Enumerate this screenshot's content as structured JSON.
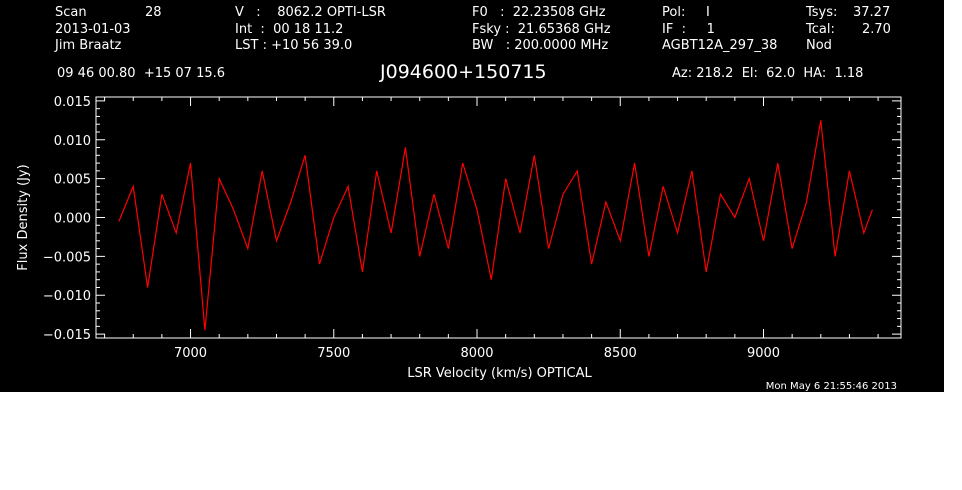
{
  "header": {
    "scan_label": "Scan",
    "scan_number": "28",
    "date": "2013-01-03",
    "observer": "Jim Braatz",
    "velocity": "V   :    8062.2 OPTI-LSR",
    "integration": "Int  :  00 18 11.2",
    "lst": "LST : +10 56 39.0",
    "f0": "F0   :  22.23508 GHz",
    "fsky": "Fsky :  21.65368 GHz",
    "bw": "BW   : 200.0000 MHz",
    "pol": "Pol:     I",
    "if": "IF  :     1",
    "project": "AGBT12A_297_38",
    "tsys_label": "Tsys:",
    "tsys_value": "37.27",
    "tcal_label": "Tcal:",
    "tcal_value": "2.70",
    "procedure": "Nod",
    "coords": "09 46 00.80  +15 07 15.6",
    "source": "J094600+150715",
    "pointing": "Az: 218.2  El:  62.0  HA:  1.18",
    "timestamp": "Mon May  6 21:55:46 2013"
  },
  "colors": {
    "background": "#000000",
    "axes": "#ffffff",
    "trace": "#ff0000"
  },
  "chart_data": {
    "type": "line",
    "xlabel": "LSR Velocity (km/s) OPTICAL",
    "ylabel": "Flux Density (Jy)",
    "xlim": [
      6670,
      9480
    ],
    "ylim": [
      -0.0155,
      0.0155
    ],
    "xticks": [
      {
        "value": 7000,
        "label": "7000"
      },
      {
        "value": 7500,
        "label": "7500"
      },
      {
        "value": 8000,
        "label": "8000"
      },
      {
        "value": 8500,
        "label": "8500"
      },
      {
        "value": 9000,
        "label": "9000"
      }
    ],
    "yticks": [
      {
        "value": 0.015,
        "label": "0.015"
      },
      {
        "value": 0.01,
        "label": "0.010"
      },
      {
        "value": 0.005,
        "label": "0.005"
      },
      {
        "value": 0.0,
        "label": "0.000"
      },
      {
        "value": -0.005,
        "label": "−0.005"
      },
      {
        "value": -0.01,
        "label": "−0.010"
      },
      {
        "value": -0.015,
        "label": "−0.015"
      }
    ],
    "series": [
      {
        "x": [
          6750,
          6800,
          6850,
          6900,
          6950,
          7000,
          7050,
          7100,
          7150,
          7200,
          7250,
          7300,
          7350,
          7400,
          7450,
          7500,
          7550,
          7600,
          7650,
          7700,
          7750,
          7800,
          7850,
          7900,
          7950,
          8000,
          8050,
          8100,
          8150,
          8200,
          8250,
          8300,
          8350,
          8400,
          8450,
          8500,
          8550,
          8600,
          8650,
          8700,
          8750,
          8800,
          8850,
          8900,
          8950,
          9000,
          9050,
          9100,
          9150,
          9200,
          9250,
          9300,
          9350,
          9380
        ],
        "y": [
          -0.0005,
          0.004,
          -0.009,
          0.003,
          -0.002,
          0.007,
          -0.0145,
          0.005,
          0.001,
          -0.004,
          0.006,
          -0.003,
          0.002,
          0.008,
          -0.006,
          0.0,
          0.004,
          -0.007,
          0.006,
          -0.002,
          0.009,
          -0.005,
          0.003,
          -0.004,
          0.007,
          0.001,
          -0.008,
          0.005,
          -0.002,
          0.008,
          -0.004,
          0.003,
          0.006,
          -0.006,
          0.002,
          -0.003,
          0.007,
          -0.005,
          0.004,
          -0.002,
          0.006,
          -0.007,
          0.003,
          0.0,
          0.005,
          -0.003,
          0.007,
          -0.004,
          0.002,
          0.0125,
          -0.005,
          0.006,
          -0.002,
          0.001
        ]
      }
    ]
  }
}
